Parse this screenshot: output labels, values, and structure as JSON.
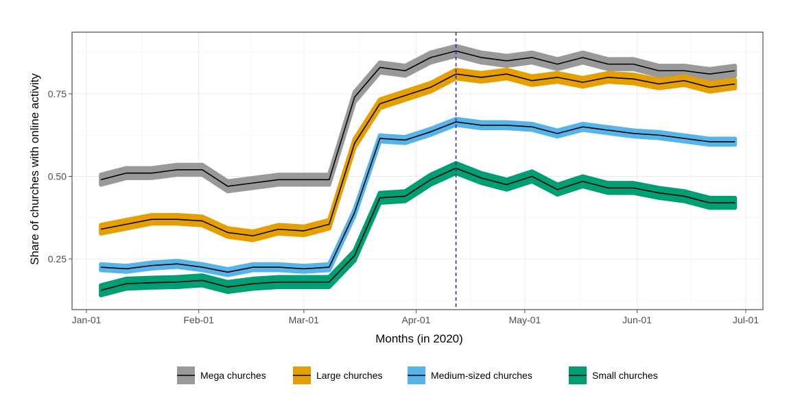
{
  "chart_data": {
    "type": "line",
    "xlabel": "Months (in 2020)",
    "ylabel": "Share of churches with online activity",
    "x_ticks": [
      "Jan-01",
      "Feb-01",
      "Mar-01",
      "Apr-01",
      "May-01",
      "Jun-01",
      "Jul-01"
    ],
    "y_ticks": [
      "0.25",
      "0.50",
      "0.75"
    ],
    "ylim": [
      0.11,
      0.92
    ],
    "grid": true,
    "legend_position": "bottom",
    "confidence_band": true,
    "reference_line": {
      "x": "2020-04-12",
      "style": "dashed",
      "color": "#1f1fa8"
    },
    "x": [
      "2020-01-05",
      "2020-01-12",
      "2020-01-19",
      "2020-01-26",
      "2020-02-02",
      "2020-02-09",
      "2020-02-16",
      "2020-02-23",
      "2020-03-01",
      "2020-03-08",
      "2020-03-15",
      "2020-03-22",
      "2020-03-29",
      "2020-04-05",
      "2020-04-12",
      "2020-04-19",
      "2020-04-26",
      "2020-05-03",
      "2020-05-10",
      "2020-05-17",
      "2020-05-24",
      "2020-05-31",
      "2020-06-07",
      "2020-06-14",
      "2020-06-21",
      "2020-06-28"
    ],
    "series": [
      {
        "name": "Mega churches",
        "color": "#999999",
        "values": [
          0.49,
          0.51,
          0.51,
          0.52,
          0.52,
          0.47,
          0.48,
          0.49,
          0.49,
          0.49,
          0.74,
          0.83,
          0.82,
          0.86,
          0.88,
          0.86,
          0.85,
          0.86,
          0.84,
          0.86,
          0.84,
          0.84,
          0.82,
          0.82,
          0.81,
          0.82
        ],
        "band": 0.015
      },
      {
        "name": "Large churches",
        "color": "#E69F00",
        "values": [
          0.34,
          0.355,
          0.37,
          0.37,
          0.365,
          0.33,
          0.32,
          0.34,
          0.335,
          0.355,
          0.6,
          0.72,
          0.745,
          0.77,
          0.81,
          0.8,
          0.81,
          0.79,
          0.8,
          0.785,
          0.8,
          0.795,
          0.78,
          0.79,
          0.77,
          0.78
        ],
        "band": 0.013
      },
      {
        "name": "Medium-sized churches",
        "color": "#56B4E9",
        "values": [
          0.225,
          0.22,
          0.23,
          0.235,
          0.225,
          0.21,
          0.225,
          0.225,
          0.22,
          0.225,
          0.39,
          0.615,
          0.61,
          0.635,
          0.665,
          0.655,
          0.655,
          0.65,
          0.63,
          0.65,
          0.64,
          0.63,
          0.625,
          0.615,
          0.605,
          0.605
        ],
        "band": 0.009
      },
      {
        "name": "Small churches",
        "color": "#009E73",
        "values": [
          0.155,
          0.175,
          0.178,
          0.18,
          0.185,
          0.165,
          0.175,
          0.18,
          0.18,
          0.18,
          0.26,
          0.435,
          0.44,
          0.49,
          0.525,
          0.495,
          0.475,
          0.5,
          0.46,
          0.485,
          0.465,
          0.465,
          0.45,
          0.44,
          0.42,
          0.42
        ],
        "band": 0.015
      }
    ]
  }
}
